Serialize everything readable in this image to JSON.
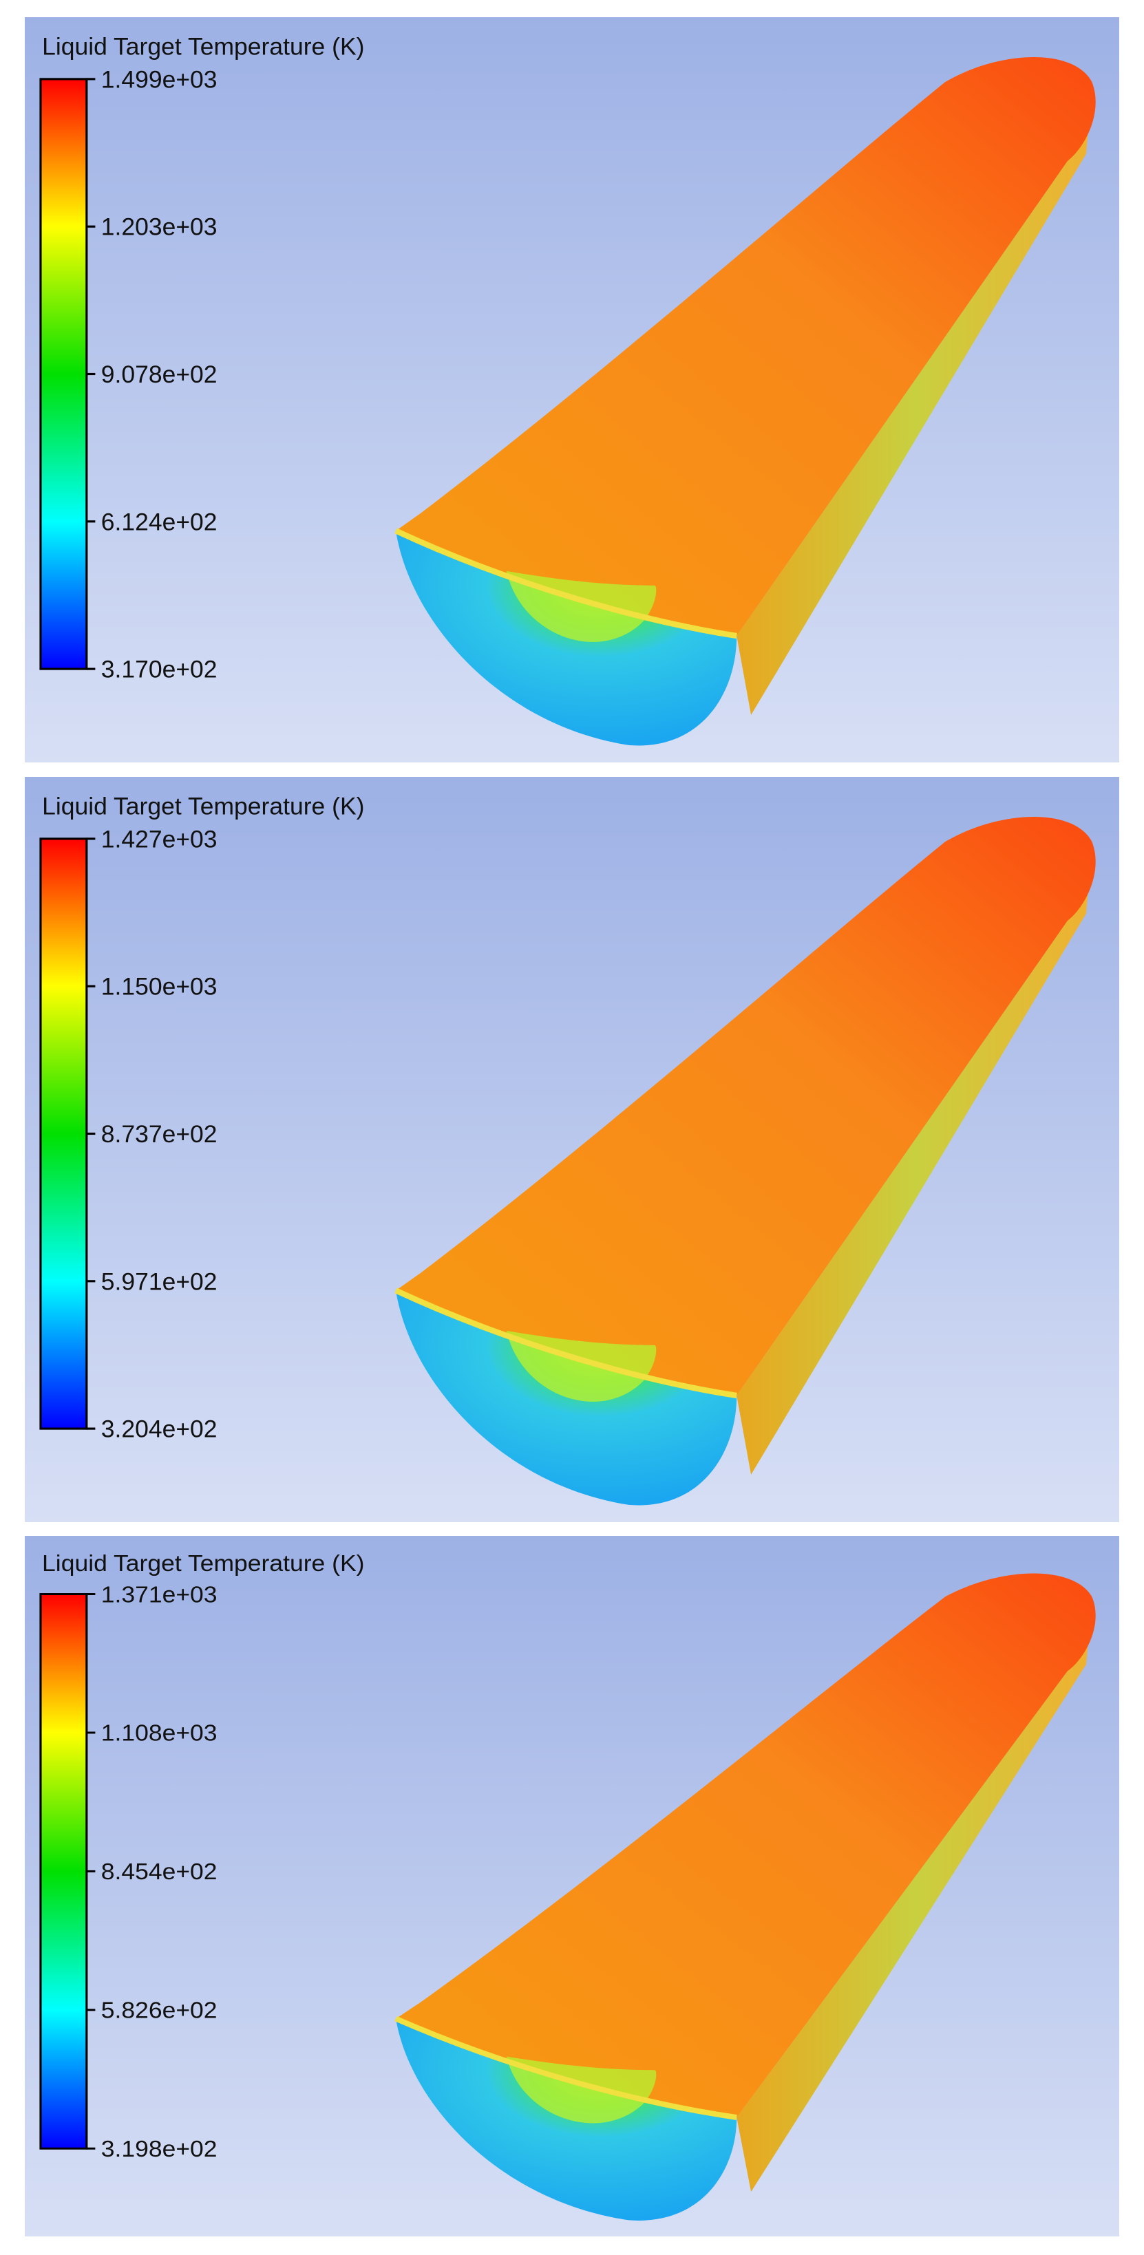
{
  "panels": [
    {
      "title": "Liquid Target Temperature (K)",
      "colorbar_labels": [
        "1.499e+03",
        "1.203e+03",
        "9.078e+02",
        "6.124e+02",
        "3.170e+02"
      ]
    },
    {
      "title": "Liquid Target Temperature (K)",
      "colorbar_labels": [
        "1.427e+03",
        "1.150e+03",
        "8.737e+02",
        "5.971e+02",
        "3.204e+02"
      ]
    },
    {
      "title": "Liquid Target Temperature (K)",
      "colorbar_labels": [
        "1.371e+03",
        "1.108e+03",
        "8.454e+02",
        "5.826e+02",
        "3.198e+02"
      ]
    }
  ]
}
